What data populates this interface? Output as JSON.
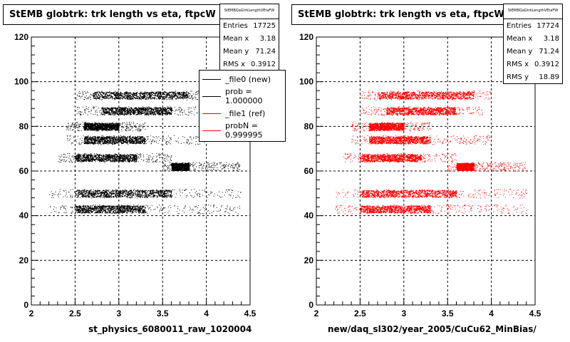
{
  "colors": {
    "file0": "#000000",
    "file1": "#ff0000"
  },
  "chart_data": [
    {
      "type": "scatter",
      "title": "StEMB globtrk: trk length vs eta, ftpcW",
      "xlabel": "st_physics_6080011_raw_1020004",
      "ylabel": "",
      "xlim": [
        2,
        4.5
      ],
      "ylim": [
        0,
        120
      ],
      "grid": true,
      "xticks": [
        "2",
        "2.5",
        "3",
        "3.5",
        "4",
        "4.5"
      ],
      "yticks": [
        "0",
        "20",
        "40",
        "60",
        "80",
        "100",
        "120"
      ],
      "color": "#000000",
      "bands": [
        {
          "y": 94,
          "x_range": [
            2.5,
            4.0
          ],
          "dense_range": [
            2.7,
            3.8
          ]
        },
        {
          "y": 87,
          "x_range": [
            2.5,
            3.9
          ],
          "dense_range": [
            2.8,
            3.6
          ]
        },
        {
          "y": 80,
          "x_range": [
            2.4,
            3.3
          ],
          "dense_range": [
            2.6,
            3.0
          ]
        },
        {
          "y": 74,
          "x_range": [
            2.4,
            4.0
          ],
          "dense_range": [
            2.6,
            3.3
          ]
        },
        {
          "y": 66,
          "x_range": [
            2.3,
            3.6
          ],
          "dense_range": [
            2.5,
            3.2
          ]
        },
        {
          "y": 62,
          "x_range": [
            3.5,
            4.4
          ],
          "dense_range": [
            3.6,
            3.8
          ]
        },
        {
          "y": 50,
          "x_range": [
            2.2,
            4.4
          ],
          "dense_range": [
            2.5,
            3.6
          ]
        },
        {
          "y": 43,
          "x_range": [
            2.2,
            4.4
          ],
          "dense_range": [
            2.5,
            3.3
          ]
        }
      ],
      "stats": {
        "header": "StEMBQaGtrkLengthVEtaFW",
        "rows": [
          {
            "label": "Entries",
            "value": "17725"
          },
          {
            "label": "Mean x",
            "value": "3.18"
          },
          {
            "label": "Mean y",
            "value": "71.24"
          },
          {
            "label": "RMS x",
            "value": "0.3912"
          }
        ]
      },
      "legend": {
        "position": "top-right",
        "entries": [
          {
            "label": "_file0 (new)",
            "color": "#000000"
          },
          {
            "label": "prob = 1.000000",
            "color": "#000000"
          },
          {
            "label": "_file1 (ref)",
            "color": "#ff0000"
          },
          {
            "label": "probN = 0.999995",
            "color": "#ff0000"
          }
        ]
      }
    },
    {
      "type": "scatter",
      "title": "StEMB globtrk: trk length vs eta, ftpcW",
      "xlabel": "new/daq_sl302/year_2005/CuCu62_MinBias/",
      "ylabel": "",
      "xlim": [
        2,
        4.5
      ],
      "ylim": [
        0,
        120
      ],
      "grid": true,
      "xticks": [
        "2",
        "2.5",
        "3",
        "3.5",
        "4",
        "4.5"
      ],
      "yticks": [
        "0",
        "20",
        "40",
        "60",
        "80",
        "100",
        "120"
      ],
      "color": "#ff0000",
      "bands": [
        {
          "y": 94,
          "x_range": [
            2.5,
            4.0
          ],
          "dense_range": [
            2.7,
            3.8
          ]
        },
        {
          "y": 87,
          "x_range": [
            2.5,
            3.9
          ],
          "dense_range": [
            2.8,
            3.6
          ]
        },
        {
          "y": 80,
          "x_range": [
            2.4,
            3.3
          ],
          "dense_range": [
            2.6,
            3.0
          ]
        },
        {
          "y": 74,
          "x_range": [
            2.4,
            4.0
          ],
          "dense_range": [
            2.6,
            3.3
          ]
        },
        {
          "y": 66,
          "x_range": [
            2.3,
            3.6
          ],
          "dense_range": [
            2.5,
            3.2
          ]
        },
        {
          "y": 62,
          "x_range": [
            3.5,
            4.4
          ],
          "dense_range": [
            3.6,
            3.8
          ]
        },
        {
          "y": 50,
          "x_range": [
            2.2,
            4.4
          ],
          "dense_range": [
            2.5,
            3.6
          ]
        },
        {
          "y": 43,
          "x_range": [
            2.2,
            4.4
          ],
          "dense_range": [
            2.5,
            3.3
          ]
        }
      ],
      "stats": {
        "header": "StEMBQaGtrkLengthVEtaFW",
        "rows": [
          {
            "label": "Entries",
            "value": "17724"
          },
          {
            "label": "Mean x",
            "value": "3.18"
          },
          {
            "label": "Mean y",
            "value": "71.24"
          },
          {
            "label": "RMS x",
            "value": "0.3912"
          },
          {
            "label": "RMS y",
            "value": "18.89"
          }
        ]
      }
    }
  ]
}
